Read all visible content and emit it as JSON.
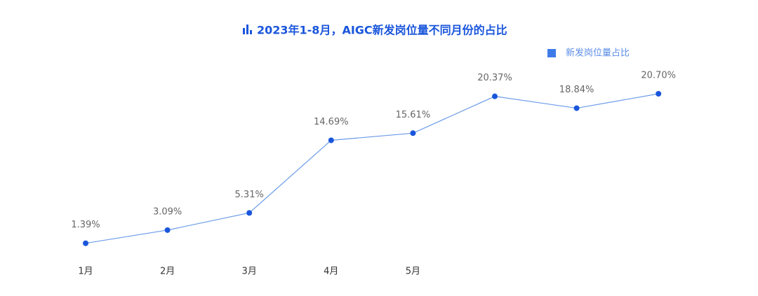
{
  "chart_data": {
    "type": "line",
    "title": "2023年1-8月，AIGC新发岗位量不同月份的占比",
    "categories": [
      "1月",
      "2月",
      "3月",
      "4月",
      "5月",
      null,
      null,
      null
    ],
    "series": [
      {
        "name": "新发岗位量占比",
        "color": "#1a56db",
        "values": [
          1.39,
          3.09,
          5.31,
          14.69,
          15.61,
          20.37,
          18.84,
          20.7
        ],
        "value_labels": [
          "1.39%",
          "3.09%",
          "5.31%",
          "14.69%",
          "15.61%",
          "20.37%",
          "18.84%",
          "20.70%"
        ]
      }
    ]
  }
}
